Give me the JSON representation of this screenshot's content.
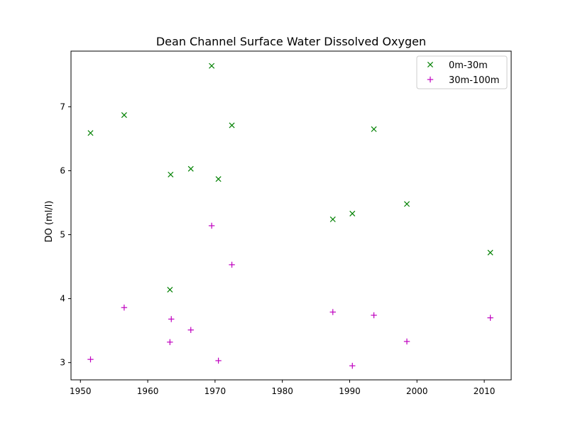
{
  "chart_data": {
    "type": "scatter",
    "title": "Dean Channel Surface Water Dissolved Oxygen",
    "xlabel": "",
    "ylabel": "DO (ml/l)",
    "xlim": [
      1948.6,
      2014.0
    ],
    "ylim": [
      2.73,
      7.87
    ],
    "xticks": [
      1950,
      1960,
      1970,
      1980,
      1990,
      2000,
      2010
    ],
    "yticks": [
      3,
      4,
      5,
      6,
      7
    ],
    "grid": false,
    "legend_position": "top-right",
    "series": [
      {
        "name": "0m-30m",
        "marker": "x",
        "color": "#008000",
        "x": [
          1951.5,
          1956.5,
          1963.3,
          1963.4,
          1966.4,
          1969.5,
          1970.5,
          1972.5,
          1987.5,
          1990.4,
          1993.6,
          1998.5,
          2010.9
        ],
        "y": [
          6.59,
          6.87,
          4.14,
          5.94,
          6.03,
          7.64,
          5.87,
          6.71,
          5.24,
          5.33,
          6.65,
          5.48,
          4.72
        ]
      },
      {
        "name": "30m-100m",
        "marker": "+",
        "color": "#bf00bf",
        "x": [
          1951.5,
          1956.5,
          1963.3,
          1963.5,
          1966.4,
          1969.5,
          1970.5,
          1972.5,
          1987.5,
          1990.4,
          1993.6,
          1998.5,
          2010.9
        ],
        "y": [
          3.05,
          3.86,
          3.32,
          3.68,
          3.51,
          5.14,
          3.03,
          4.53,
          3.79,
          2.95,
          3.74,
          3.33,
          3.7
        ]
      }
    ]
  }
}
